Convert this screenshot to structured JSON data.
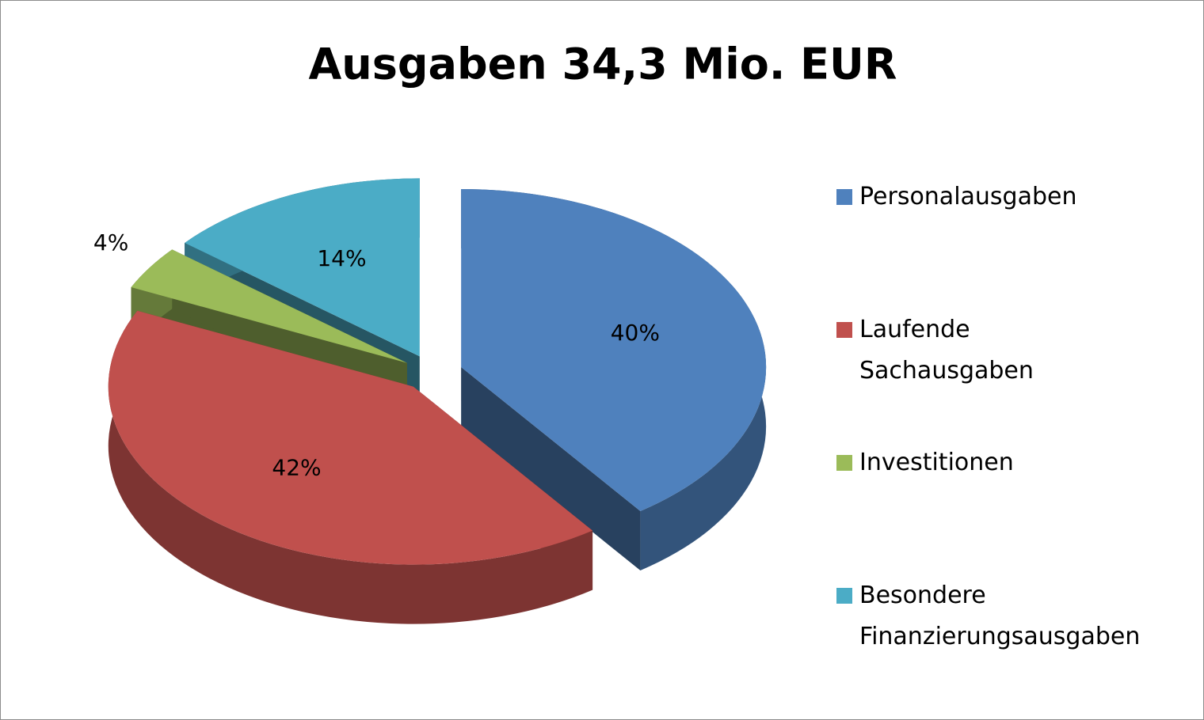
{
  "chart_data": {
    "type": "pie",
    "title": "Ausgaben 34,3 Mio. EUR",
    "categories": [
      "Personalausgaben",
      "Laufende Sachausgaben",
      "Investitionen",
      "Besondere Finanzierungsausgaben"
    ],
    "values": [
      40,
      42,
      4,
      14
    ],
    "value_labels": [
      "40%",
      "42%",
      "4%",
      "14%"
    ],
    "colors": [
      "#4f81bd",
      "#c0504d",
      "#9bbb59",
      "#4bacc6"
    ],
    "legend": "right"
  }
}
